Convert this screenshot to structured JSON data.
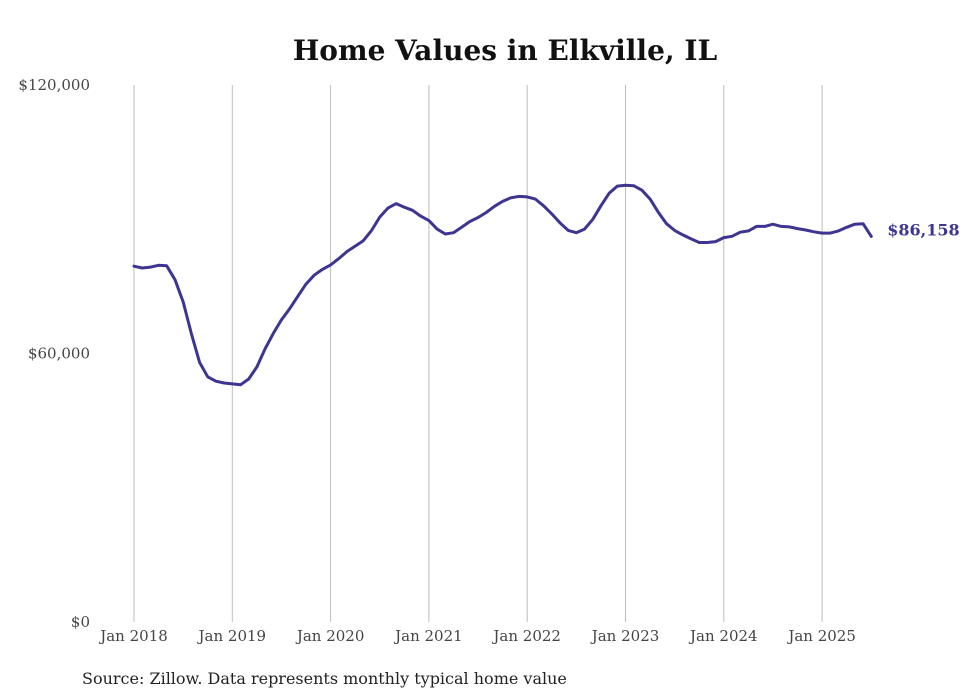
{
  "chart_data": {
    "type": "line",
    "title": "Home Values in Elkville, IL",
    "source": "Source: Zillow. Data represents monthly typical home value",
    "ylim": [
      0,
      120000
    ],
    "y_ticks": [
      {
        "value": 0,
        "label": "$0"
      },
      {
        "value": 60000,
        "label": "$60,000"
      },
      {
        "value": 120000,
        "label": "$120,000"
      }
    ],
    "x_ticks": [
      {
        "value": 2018.0,
        "label": "Jan 2018"
      },
      {
        "value": 2019.0,
        "label": "Jan 2019"
      },
      {
        "value": 2020.0,
        "label": "Jan 2020"
      },
      {
        "value": 2021.0,
        "label": "Jan 2021"
      },
      {
        "value": 2022.0,
        "label": "Jan 2022"
      },
      {
        "value": 2023.0,
        "label": "Jan 2023"
      },
      {
        "value": 2024.0,
        "label": "Jan 2024"
      },
      {
        "value": 2025.0,
        "label": "Jan 2025"
      }
    ],
    "xlim": [
      2018.0,
      2025.5
    ],
    "grid": "vertical",
    "line_color": "#3d3591",
    "end_label": "$86,158",
    "series": [
      {
        "points": [
          [
            2018.0,
            79500
          ],
          [
            2018.083,
            79100
          ],
          [
            2018.167,
            79300
          ],
          [
            2018.25,
            79700
          ],
          [
            2018.333,
            79600
          ],
          [
            2018.417,
            76500
          ],
          [
            2018.5,
            71500
          ],
          [
            2018.583,
            64500
          ],
          [
            2018.667,
            58000
          ],
          [
            2018.75,
            54800
          ],
          [
            2018.833,
            53800
          ],
          [
            2018.917,
            53400
          ],
          [
            2019.0,
            53200
          ],
          [
            2019.083,
            53000
          ],
          [
            2019.167,
            54300
          ],
          [
            2019.25,
            57000
          ],
          [
            2019.333,
            61000
          ],
          [
            2019.417,
            64500
          ],
          [
            2019.5,
            67500
          ],
          [
            2019.583,
            70000
          ],
          [
            2019.667,
            72800
          ],
          [
            2019.75,
            75500
          ],
          [
            2019.833,
            77500
          ],
          [
            2019.917,
            78800
          ],
          [
            2020.0,
            79800
          ],
          [
            2020.083,
            81200
          ],
          [
            2020.167,
            82800
          ],
          [
            2020.25,
            84000
          ],
          [
            2020.333,
            85200
          ],
          [
            2020.417,
            87500
          ],
          [
            2020.5,
            90500
          ],
          [
            2020.583,
            92500
          ],
          [
            2020.667,
            93500
          ],
          [
            2020.75,
            92700
          ],
          [
            2020.833,
            92000
          ],
          [
            2020.917,
            90700
          ],
          [
            2021.0,
            89700
          ],
          [
            2021.083,
            87800
          ],
          [
            2021.167,
            86700
          ],
          [
            2021.25,
            87000
          ],
          [
            2021.333,
            88200
          ],
          [
            2021.417,
            89500
          ],
          [
            2021.5,
            90400
          ],
          [
            2021.583,
            91500
          ],
          [
            2021.667,
            92900
          ],
          [
            2021.75,
            94000
          ],
          [
            2021.833,
            94800
          ],
          [
            2021.917,
            95100
          ],
          [
            2022.0,
            95000
          ],
          [
            2022.083,
            94500
          ],
          [
            2022.167,
            93000
          ],
          [
            2022.25,
            91200
          ],
          [
            2022.333,
            89200
          ],
          [
            2022.417,
            87500
          ],
          [
            2022.5,
            87000
          ],
          [
            2022.583,
            87800
          ],
          [
            2022.667,
            90000
          ],
          [
            2022.75,
            93000
          ],
          [
            2022.833,
            95800
          ],
          [
            2022.917,
            97400
          ],
          [
            2023.0,
            97600
          ],
          [
            2023.083,
            97500
          ],
          [
            2023.167,
            96500
          ],
          [
            2023.25,
            94500
          ],
          [
            2023.333,
            91600
          ],
          [
            2023.417,
            89000
          ],
          [
            2023.5,
            87500
          ],
          [
            2023.583,
            86500
          ],
          [
            2023.667,
            85600
          ],
          [
            2023.75,
            84800
          ],
          [
            2023.833,
            84800
          ],
          [
            2023.917,
            85000
          ],
          [
            2024.0,
            85900
          ],
          [
            2024.083,
            86200
          ],
          [
            2024.167,
            87100
          ],
          [
            2024.25,
            87400
          ],
          [
            2024.333,
            88400
          ],
          [
            2024.417,
            88400
          ],
          [
            2024.5,
            88900
          ],
          [
            2024.583,
            88400
          ],
          [
            2024.667,
            88300
          ],
          [
            2024.75,
            87900
          ],
          [
            2024.833,
            87600
          ],
          [
            2024.917,
            87200
          ],
          [
            2025.0,
            86900
          ],
          [
            2025.083,
            86900
          ],
          [
            2025.167,
            87400
          ],
          [
            2025.25,
            88200
          ],
          [
            2025.333,
            88900
          ],
          [
            2025.417,
            89000
          ],
          [
            2025.5,
            86158
          ]
        ]
      }
    ]
  }
}
